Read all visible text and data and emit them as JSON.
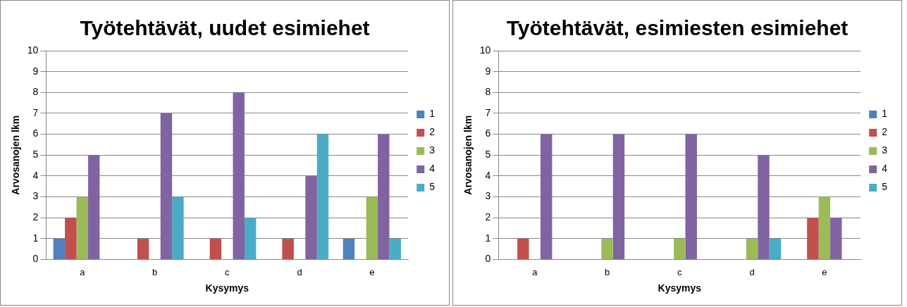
{
  "chart_data": [
    {
      "type": "bar",
      "title": "Työtehtävät, uudet esimiehet",
      "xlabel": "Kysymys",
      "ylabel": "Arvosanojen lkm",
      "categories": [
        "a",
        "b",
        "c",
        "d",
        "e"
      ],
      "ylim": [
        0,
        10
      ],
      "yticks": [
        0,
        1,
        2,
        3,
        4,
        5,
        6,
        7,
        8,
        9,
        10
      ],
      "grid": "y",
      "legend": "right",
      "series": [
        {
          "name": "1",
          "color": "#4f81bd",
          "values": [
            1,
            0,
            0,
            0,
            1
          ]
        },
        {
          "name": "2",
          "color": "#c0504d",
          "values": [
            2,
            1,
            1,
            1,
            0
          ]
        },
        {
          "name": "3",
          "color": "#9bbb59",
          "values": [
            3,
            0,
            0,
            0,
            3
          ]
        },
        {
          "name": "4",
          "color": "#8064a2",
          "values": [
            5,
            7,
            8,
            4,
            6
          ]
        },
        {
          "name": "5",
          "color": "#4bacc6",
          "values": [
            0,
            3,
            2,
            6,
            1
          ]
        }
      ]
    },
    {
      "type": "bar",
      "title": "Työtehtävät, esimiesten esimiehet",
      "xlabel": "Kysymys",
      "ylabel": "Arvosanojen lkm",
      "categories": [
        "a",
        "b",
        "c",
        "d",
        "e"
      ],
      "ylim": [
        0,
        10
      ],
      "yticks": [
        0,
        1,
        2,
        3,
        4,
        5,
        6,
        7,
        8,
        9,
        10
      ],
      "grid": "y",
      "legend": "right",
      "series": [
        {
          "name": "1",
          "color": "#4f81bd",
          "values": [
            0,
            0,
            0,
            0,
            0
          ]
        },
        {
          "name": "2",
          "color": "#c0504d",
          "values": [
            1,
            0,
            0,
            0,
            2
          ]
        },
        {
          "name": "3",
          "color": "#9bbb59",
          "values": [
            0,
            1,
            1,
            1,
            3
          ]
        },
        {
          "name": "4",
          "color": "#8064a2",
          "values": [
            6,
            6,
            6,
            5,
            2
          ]
        },
        {
          "name": "5",
          "color": "#4bacc6",
          "values": [
            0,
            0,
            0,
            1,
            0
          ]
        }
      ]
    }
  ]
}
